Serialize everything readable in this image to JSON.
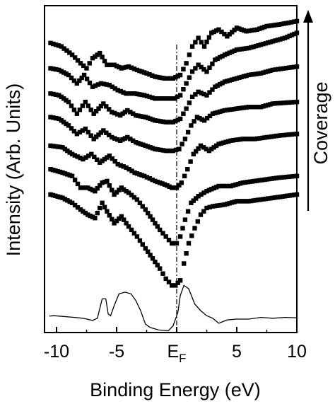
{
  "chart_data": {
    "type": "line",
    "title": "",
    "xlabel": "Binding Energy (eV)",
    "ylabel": "Intensity (Arb. Units)",
    "xlim": [
      -11,
      10
    ],
    "x_ticks": [
      {
        "value": -10,
        "label": "-10"
      },
      {
        "value": -5,
        "label": "-5"
      },
      {
        "value": 0,
        "label": "E",
        "sub": "F"
      },
      {
        "value": 5,
        "label": "5"
      },
      {
        "value": 10,
        "label": "10"
      }
    ],
    "y_ticks_shown": false,
    "grid": false,
    "fermi_level_line": {
      "x": 0,
      "style": "dash-dot"
    },
    "annotation": {
      "text": "Coverage",
      "direction": "up",
      "placement": "right"
    },
    "series": [
      {
        "style": "solid-line",
        "points": [
          [
            -10.6,
            0.98
          ],
          [
            -10.2,
            1.0
          ],
          [
            -9.5,
            0.96
          ],
          [
            -8.5,
            0.9
          ],
          [
            -7.8,
            0.85
          ],
          [
            -7.0,
            0.72
          ],
          [
            -6.6,
            0.85
          ],
          [
            -6.2,
            2.0
          ],
          [
            -5.9,
            2.0
          ],
          [
            -5.7,
            1.1
          ],
          [
            -5.5,
            1.0
          ],
          [
            -5.2,
            1.6
          ],
          [
            -4.8,
            2.3
          ],
          [
            -4.3,
            2.4
          ],
          [
            -3.8,
            2.3
          ],
          [
            -3.4,
            1.9
          ],
          [
            -3.0,
            1.3
          ],
          [
            -2.6,
            0.5
          ],
          [
            -2.2,
            0.3
          ],
          [
            -1.5,
            0.15
          ],
          [
            -0.7,
            0.1
          ],
          [
            -0.3,
            0.4
          ],
          [
            0.1,
            1.2
          ],
          [
            0.3,
            2.2
          ],
          [
            0.6,
            2.8
          ],
          [
            1.0,
            2.6
          ],
          [
            1.5,
            1.7
          ],
          [
            2.0,
            1.3
          ],
          [
            2.5,
            1.0
          ],
          [
            3.0,
            0.85
          ],
          [
            3.5,
            0.55
          ],
          [
            4.2,
            0.75
          ],
          [
            5.0,
            0.8
          ],
          [
            6.0,
            0.8
          ],
          [
            7.0,
            0.9
          ],
          [
            8.0,
            0.85
          ],
          [
            9.0,
            0.9
          ],
          [
            10.0,
            0.88
          ]
        ]
      },
      {
        "style": "square-markers",
        "points": [
          [
            -10.5,
            8.2
          ],
          [
            -9.5,
            8.0
          ],
          [
            -8.7,
            7.7
          ],
          [
            -8.0,
            7.3
          ],
          [
            -7.4,
            7.0
          ],
          [
            -6.8,
            6.8
          ],
          [
            -6.2,
            7.7
          ],
          [
            -5.8,
            7.2
          ],
          [
            -5.2,
            6.5
          ],
          [
            -4.6,
            6.9
          ],
          [
            -4.0,
            6.3
          ],
          [
            -3.3,
            5.7
          ],
          [
            -2.6,
            5.0
          ],
          [
            -2.0,
            4.4
          ],
          [
            -1.4,
            3.8
          ],
          [
            -0.9,
            3.2
          ],
          [
            -0.4,
            2.8
          ],
          [
            -0.1,
            2.8
          ],
          [
            0.3,
            3.1
          ],
          [
            0.6,
            4.1
          ],
          [
            1.0,
            5.3
          ],
          [
            1.5,
            6.2
          ],
          [
            2.0,
            7.0
          ],
          [
            2.5,
            7.4
          ],
          [
            3.0,
            7.5
          ],
          [
            4.0,
            7.6
          ],
          [
            5.0,
            7.8
          ],
          [
            6.0,
            7.8
          ],
          [
            7.0,
            7.9
          ],
          [
            8.0,
            8.0
          ],
          [
            9.0,
            8.1
          ],
          [
            10.0,
            8.2
          ]
        ]
      },
      {
        "style": "square-markers",
        "points": [
          [
            -10.5,
            9.7
          ],
          [
            -9.5,
            9.5
          ],
          [
            -8.7,
            9.3
          ],
          [
            -8.0,
            8.6
          ],
          [
            -7.4,
            8.6
          ],
          [
            -6.8,
            8.4
          ],
          [
            -6.2,
            8.9
          ],
          [
            -5.8,
            9.0
          ],
          [
            -5.2,
            8.2
          ],
          [
            -4.6,
            8.6
          ],
          [
            -4.0,
            8.3
          ],
          [
            -3.3,
            7.9
          ],
          [
            -2.6,
            7.3
          ],
          [
            -2.0,
            6.7
          ],
          [
            -1.4,
            6.1
          ],
          [
            -0.9,
            5.7
          ],
          [
            -0.4,
            5.3
          ],
          [
            0.0,
            5.3
          ],
          [
            0.3,
            5.7
          ],
          [
            0.7,
            6.7
          ],
          [
            1.2,
            7.7
          ],
          [
            1.8,
            8.1
          ],
          [
            2.5,
            8.4
          ],
          [
            3.5,
            8.7
          ],
          [
            4.5,
            8.7
          ],
          [
            5.5,
            8.9
          ],
          [
            6.5,
            9.0
          ],
          [
            7.5,
            9.1
          ],
          [
            8.5,
            9.2
          ],
          [
            10.0,
            9.3
          ]
        ]
      },
      {
        "style": "square-markers",
        "points": [
          [
            -10.5,
            11.1
          ],
          [
            -9.5,
            11.0
          ],
          [
            -8.7,
            10.6
          ],
          [
            -7.8,
            10.3
          ],
          [
            -7.1,
            10.6
          ],
          [
            -6.4,
            10.1
          ],
          [
            -5.6,
            10.5
          ],
          [
            -4.9,
            10.0
          ],
          [
            -4.2,
            9.8
          ],
          [
            -3.5,
            9.5
          ],
          [
            -2.7,
            9.3
          ],
          [
            -1.8,
            9.0
          ],
          [
            -1.0,
            8.8
          ],
          [
            -0.4,
            8.6
          ],
          [
            0.0,
            8.6
          ],
          [
            0.4,
            8.9
          ],
          [
            0.9,
            9.7
          ],
          [
            1.4,
            10.6
          ],
          [
            2.0,
            11.1
          ],
          [
            2.7,
            10.8
          ],
          [
            3.5,
            11.2
          ],
          [
            4.5,
            11.4
          ],
          [
            5.5,
            11.5
          ],
          [
            6.5,
            11.5
          ],
          [
            7.5,
            11.6
          ],
          [
            8.5,
            11.7
          ],
          [
            10.0,
            11.8
          ]
        ]
      },
      {
        "style": "square-markers",
        "points": [
          [
            -10.5,
            12.8
          ],
          [
            -9.8,
            12.7
          ],
          [
            -9.0,
            12.3
          ],
          [
            -8.3,
            11.8
          ],
          [
            -7.6,
            12.1
          ],
          [
            -6.9,
            11.5
          ],
          [
            -6.1,
            12.0
          ],
          [
            -5.4,
            11.6
          ],
          [
            -4.7,
            11.4
          ],
          [
            -4.1,
            11.6
          ],
          [
            -3.4,
            11.3
          ],
          [
            -2.6,
            11.1
          ],
          [
            -1.8,
            10.9
          ],
          [
            -0.9,
            10.8
          ],
          [
            -0.3,
            10.8
          ],
          [
            0.2,
            10.9
          ],
          [
            0.7,
            11.5
          ],
          [
            1.2,
            12.3
          ],
          [
            1.7,
            12.8
          ],
          [
            2.3,
            12.6
          ],
          [
            3.0,
            13.0
          ],
          [
            4.0,
            13.2
          ],
          [
            5.0,
            13.3
          ],
          [
            6.0,
            13.4
          ],
          [
            7.0,
            13.4
          ],
          [
            8.0,
            13.6
          ],
          [
            10.0,
            13.7
          ]
        ]
      },
      {
        "style": "square-markers",
        "points": [
          [
            -10.5,
            14.2
          ],
          [
            -9.8,
            14.1
          ],
          [
            -9.0,
            13.7
          ],
          [
            -8.3,
            13.0
          ],
          [
            -7.6,
            13.7
          ],
          [
            -6.9,
            13.0
          ],
          [
            -6.1,
            13.6
          ],
          [
            -5.4,
            13.1
          ],
          [
            -4.7,
            12.9
          ],
          [
            -4.1,
            13.2
          ],
          [
            -3.4,
            12.9
          ],
          [
            -2.6,
            12.8
          ],
          [
            -1.8,
            12.6
          ],
          [
            -0.9,
            12.5
          ],
          [
            -0.3,
            12.5
          ],
          [
            0.3,
            12.7
          ],
          [
            0.8,
            13.3
          ],
          [
            1.3,
            14.0
          ],
          [
            1.8,
            14.3
          ],
          [
            2.5,
            14.1
          ],
          [
            3.2,
            14.6
          ],
          [
            4.0,
            14.9
          ],
          [
            5.0,
            15.1
          ],
          [
            6.0,
            15.3
          ],
          [
            7.0,
            15.4
          ],
          [
            8.0,
            15.6
          ],
          [
            10.0,
            15.8
          ]
        ]
      },
      {
        "style": "square-markers",
        "points": [
          [
            -10.5,
            15.7
          ],
          [
            -9.8,
            15.6
          ],
          [
            -9.0,
            15.3
          ],
          [
            -8.3,
            14.8
          ],
          [
            -7.7,
            15.3
          ],
          [
            -7.0,
            14.6
          ],
          [
            -6.3,
            14.8
          ],
          [
            -5.6,
            14.7
          ],
          [
            -4.9,
            14.4
          ],
          [
            -4.2,
            14.2
          ],
          [
            -3.5,
            14.2
          ],
          [
            -2.7,
            14.1
          ],
          [
            -1.8,
            13.9
          ],
          [
            -0.9,
            13.9
          ],
          [
            -0.2,
            13.9
          ],
          [
            0.3,
            14.1
          ],
          [
            0.8,
            14.8
          ],
          [
            1.3,
            15.5
          ],
          [
            1.8,
            15.9
          ],
          [
            2.5,
            15.5
          ],
          [
            3.2,
            16.2
          ],
          [
            4.0,
            16.5
          ],
          [
            5.0,
            16.8
          ],
          [
            6.0,
            16.9
          ],
          [
            7.0,
            17.1
          ],
          [
            8.0,
            17.3
          ],
          [
            9.0,
            17.5
          ],
          [
            10.0,
            17.8
          ]
        ]
      },
      {
        "style": "square-markers",
        "points": [
          [
            -10.5,
            17.2
          ],
          [
            -9.6,
            17.0
          ],
          [
            -8.7,
            16.5
          ],
          [
            -8.0,
            16.0
          ],
          [
            -7.5,
            15.7
          ],
          [
            -7.0,
            16.3
          ],
          [
            -6.4,
            16.6
          ],
          [
            -5.8,
            15.9
          ],
          [
            -5.2,
            15.9
          ],
          [
            -4.6,
            15.7
          ],
          [
            -4.0,
            15.8
          ],
          [
            -3.3,
            15.6
          ],
          [
            -2.5,
            15.4
          ],
          [
            -1.8,
            15.2
          ],
          [
            -1.0,
            15.1
          ],
          [
            -0.3,
            15.1
          ],
          [
            0.3,
            15.3
          ],
          [
            0.8,
            16.0
          ],
          [
            1.3,
            17.0
          ],
          [
            1.8,
            17.5
          ],
          [
            2.3,
            17.0
          ],
          [
            2.9,
            17.8
          ],
          [
            3.5,
            18.0
          ],
          [
            4.2,
            17.6
          ],
          [
            5.0,
            18.1
          ],
          [
            5.8,
            17.9
          ],
          [
            6.7,
            18.0
          ],
          [
            7.5,
            18.2
          ],
          [
            8.5,
            18.3
          ],
          [
            9.3,
            18.4
          ],
          [
            10.0,
            18.5
          ]
        ]
      }
    ]
  }
}
